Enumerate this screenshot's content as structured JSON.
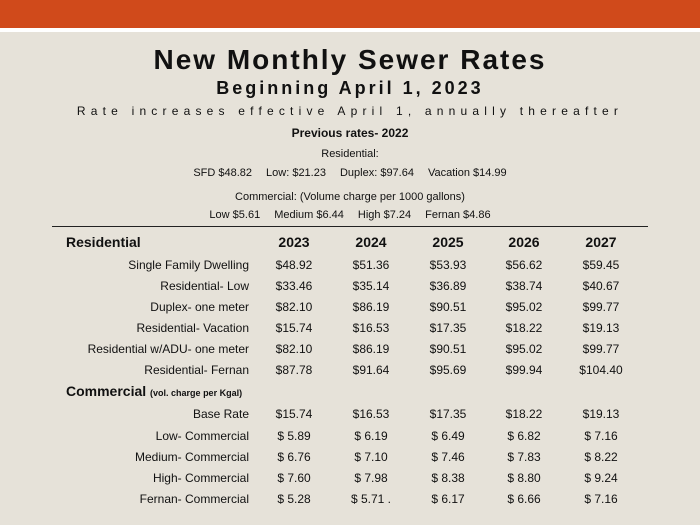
{
  "title": "New Monthly Sewer Rates",
  "subtitle": "Beginning April 1, 2023",
  "note": "Rate increases effective April 1, annually thereafter",
  "previous": {
    "heading": "Previous rates- 2022",
    "residential_label": "Residential:",
    "residential": [
      "SFD $48.82",
      "Low: $21.23",
      "Duplex: $97.64",
      "Vacation $14.99"
    ],
    "commercial_label": "Commercial: (Volume charge per 1000 gallons)",
    "commercial": [
      "Low $5.61",
      "Medium $6.44",
      "High $7.24",
      "Fernan $4.86"
    ]
  },
  "table": {
    "years": [
      "2023",
      "2024",
      "2025",
      "2026",
      "2027"
    ],
    "residential_heading": "Residential",
    "residential": [
      {
        "label": "Single Family Dwelling",
        "values": [
          "$48.92",
          "$51.36",
          "$53.93",
          "$56.62",
          "$59.45"
        ]
      },
      {
        "label": "Residential- Low",
        "values": [
          "$33.46",
          "$35.14",
          "$36.89",
          "$38.74",
          "$40.67"
        ]
      },
      {
        "label": "Duplex- one meter",
        "values": [
          "$82.10",
          "$86.19",
          "$90.51",
          "$95.02",
          "$99.77"
        ]
      },
      {
        "label": "Residential- Vacation",
        "values": [
          "$15.74",
          "$16.53",
          "$17.35",
          "$18.22",
          "$19.13"
        ]
      },
      {
        "label": "Residential w/ADU- one meter",
        "values": [
          "$82.10",
          "$86.19",
          "$90.51",
          "$95.02",
          "$99.77"
        ]
      },
      {
        "label": "Residential- Fernan",
        "values": [
          "$87.78",
          "$91.64",
          "$95.69",
          "$99.94",
          "$104.40"
        ]
      }
    ],
    "commercial_heading": "Commercial",
    "commercial_subheading": "(vol. charge per Kgal)",
    "commercial": [
      {
        "label": "Base Rate",
        "values": [
          "$15.74",
          "$16.53",
          "$17.35",
          "$18.22",
          "$19.13"
        ]
      },
      {
        "label": "Low- Commercial",
        "values": [
          "$ 5.89",
          "$ 6.19",
          "$ 6.49",
          "$ 6.82",
          "$ 7.16"
        ]
      },
      {
        "label": "Medium- Commercial",
        "values": [
          "$ 6.76",
          "$ 7.10",
          "$ 7.46",
          "$ 7.83",
          "$ 8.22"
        ]
      },
      {
        "label": "High- Commercial",
        "values": [
          "$ 7.60",
          "$ 7.98",
          "$ 8.38",
          "$ 8.80",
          "$ 9.24"
        ]
      },
      {
        "label": "Fernan- Commercial",
        "values": [
          "$ 5.28",
          "$ 5.71 .",
          "$ 6.17",
          "$ 6.66",
          "$ 7.16"
        ]
      }
    ]
  }
}
